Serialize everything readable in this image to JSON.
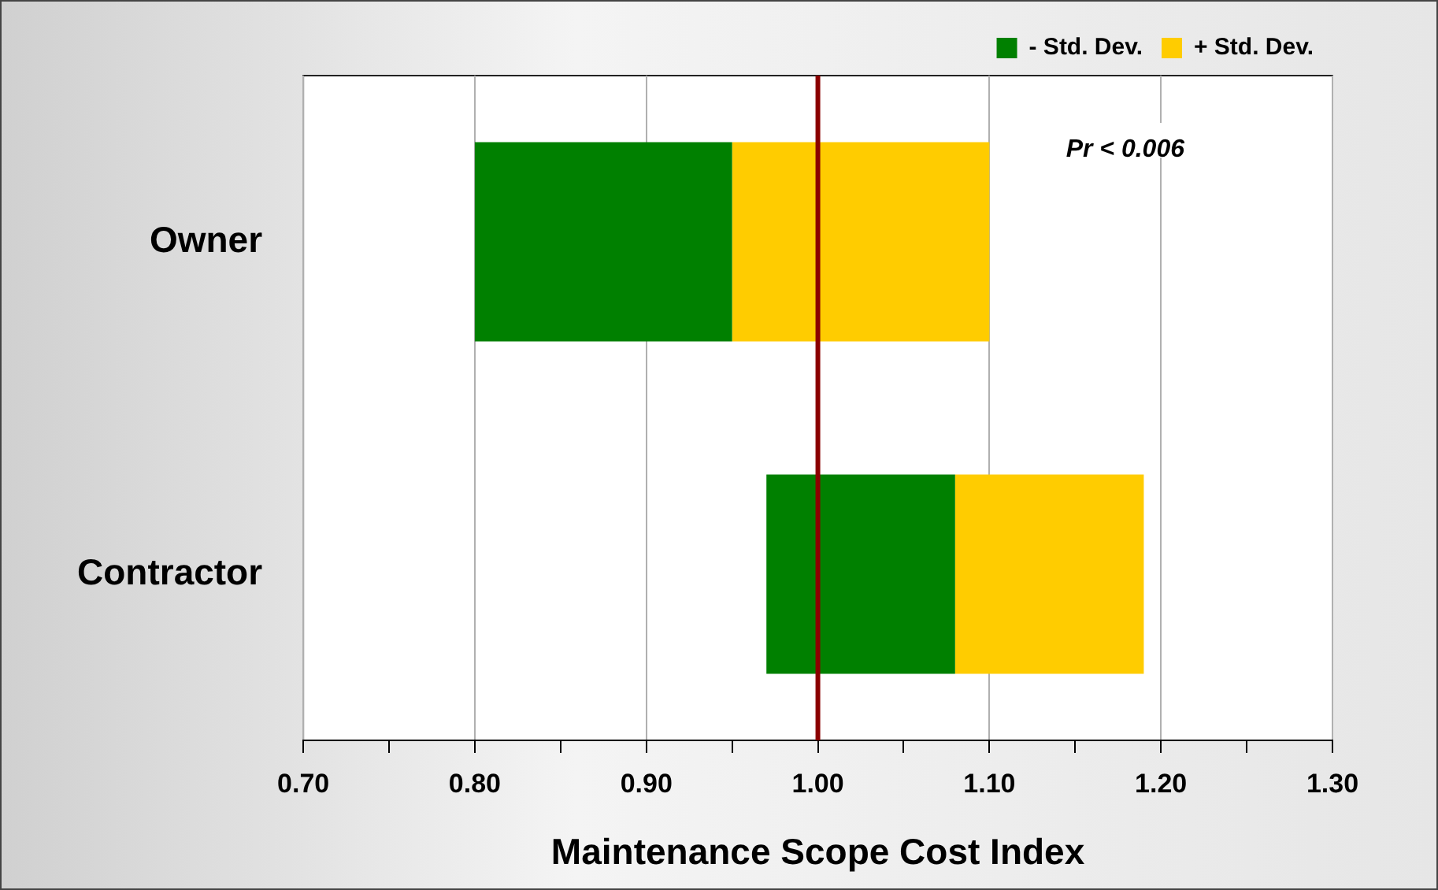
{
  "chart_data": {
    "type": "bar",
    "orientation": "horizontal",
    "categories": [
      "Owner",
      "Contractor"
    ],
    "series": [
      {
        "name": "- Std. Dev.",
        "color": "#008000",
        "base": [
          0.8,
          0.97
        ],
        "values": [
          0.15,
          0.11
        ]
      },
      {
        "name": "+ Std. Dev.",
        "color": "#ffcc00",
        "base": [
          0.95,
          1.08
        ],
        "values": [
          0.15,
          0.11
        ]
      }
    ],
    "xlabel": "Maintenance Scope Cost Index",
    "xlim": [
      0.7,
      1.3
    ],
    "xticks": [
      {
        "value": 0.7,
        "label": "0.70"
      },
      {
        "value": 0.75,
        "label": null
      },
      {
        "value": 0.8,
        "label": "0.80"
      },
      {
        "value": 0.85,
        "label": null
      },
      {
        "value": 0.9,
        "label": "0.90"
      },
      {
        "value": 0.95,
        "label": null
      },
      {
        "value": 1.0,
        "label": "1.00"
      },
      {
        "value": 1.05,
        "label": null
      },
      {
        "value": 1.1,
        "label": "1.10"
      },
      {
        "value": 1.15,
        "label": null
      },
      {
        "value": 1.2,
        "label": "1.20"
      },
      {
        "value": 1.25,
        "label": null
      },
      {
        "value": 1.3,
        "label": "1.30"
      }
    ],
    "ref_lines": [
      {
        "axis": "x",
        "value": 1.0,
        "color": "#8b0000"
      }
    ],
    "annotations": [
      "Pr < 0.006"
    ],
    "grid": "x",
    "legend": "top right"
  }
}
